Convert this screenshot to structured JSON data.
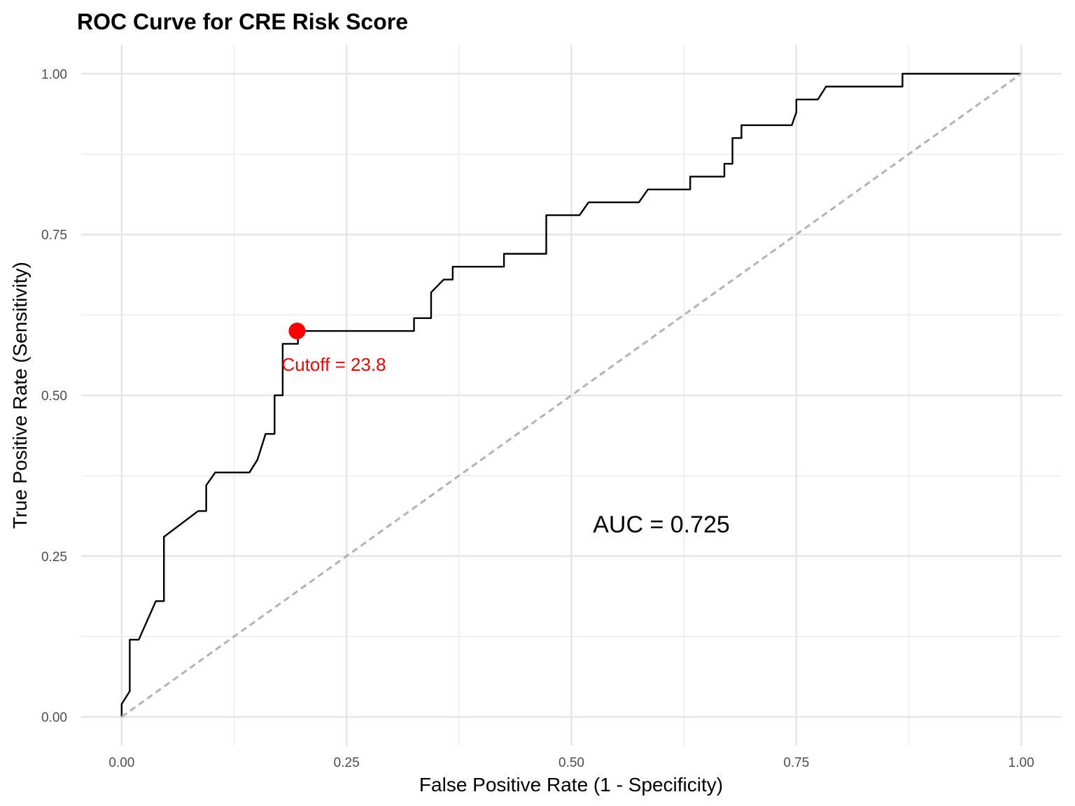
{
  "chart_data": {
    "type": "line",
    "title": "ROC Curve for CRE Risk Score",
    "xlabel": "False Positive Rate (1 - Specificity)",
    "ylabel": "True Positive Rate (Sensitivity)",
    "xlim": [
      -0.045,
      1.045
    ],
    "ylim": [
      -0.045,
      1.045
    ],
    "x_ticks": [
      "0.00",
      "0.25",
      "0.50",
      "0.75",
      "1.00"
    ],
    "y_ticks": [
      "0.00",
      "0.25",
      "0.50",
      "0.75",
      "1.00"
    ],
    "grid": true,
    "series": [
      {
        "color": "#000000",
        "points": [
          [
            0.0,
            0.0
          ],
          [
            0.0,
            0.02
          ],
          [
            0.009,
            0.04
          ],
          [
            0.009,
            0.12
          ],
          [
            0.019,
            0.12
          ],
          [
            0.038,
            0.18
          ],
          [
            0.047,
            0.18
          ],
          [
            0.047,
            0.28
          ],
          [
            0.085,
            0.32
          ],
          [
            0.094,
            0.32
          ],
          [
            0.094,
            0.36
          ],
          [
            0.104,
            0.38
          ],
          [
            0.142,
            0.38
          ],
          [
            0.151,
            0.4
          ],
          [
            0.16,
            0.44
          ],
          [
            0.17,
            0.44
          ],
          [
            0.17,
            0.5
          ],
          [
            0.179,
            0.5
          ],
          [
            0.179,
            0.58
          ],
          [
            0.196,
            0.58
          ],
          [
            0.196,
            0.6
          ],
          [
            0.325,
            0.6
          ],
          [
            0.325,
            0.62
          ],
          [
            0.344,
            0.62
          ],
          [
            0.344,
            0.66
          ],
          [
            0.358,
            0.68
          ],
          [
            0.368,
            0.68
          ],
          [
            0.368,
            0.7
          ],
          [
            0.425,
            0.7
          ],
          [
            0.425,
            0.72
          ],
          [
            0.472,
            0.72
          ],
          [
            0.472,
            0.78
          ],
          [
            0.509,
            0.78
          ],
          [
            0.519,
            0.8
          ],
          [
            0.575,
            0.8
          ],
          [
            0.585,
            0.82
          ],
          [
            0.632,
            0.82
          ],
          [
            0.632,
            0.84
          ],
          [
            0.67,
            0.84
          ],
          [
            0.67,
            0.86
          ],
          [
            0.679,
            0.86
          ],
          [
            0.679,
            0.9
          ],
          [
            0.689,
            0.9
          ],
          [
            0.689,
            0.92
          ],
          [
            0.745,
            0.92
          ],
          [
            0.75,
            0.94
          ],
          [
            0.75,
            0.96
          ],
          [
            0.774,
            0.96
          ],
          [
            0.783,
            0.98
          ],
          [
            0.868,
            0.98
          ],
          [
            0.868,
            1.0
          ],
          [
            1.0,
            1.0
          ]
        ]
      },
      {
        "style": "dashed",
        "color": "#b3b3b3",
        "points": [
          [
            0.0,
            0.0
          ],
          [
            1.0,
            1.0
          ]
        ]
      }
    ],
    "optimal_point": {
      "x": 0.195,
      "y": 0.6,
      "color": "#ff0000",
      "label": "Cutoff = 23.8"
    },
    "auc_label": "AUC = 0.725",
    "auc_label_position": {
      "x": 0.6,
      "y": 0.3
    }
  }
}
